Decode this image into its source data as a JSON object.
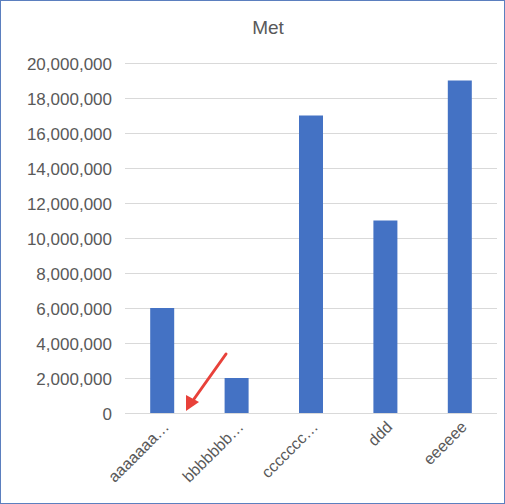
{
  "chart_data": {
    "type": "bar",
    "title": "Met",
    "categories": [
      "aaaaaaa…",
      "bbbbbbb…",
      "ccccccc…",
      "ddd",
      "eeeeee"
    ],
    "values": [
      6000000,
      2000000,
      17000000,
      11000000,
      19000000
    ],
    "color": "#4472c4",
    "ylim": [
      0,
      20000000
    ],
    "yticks": [
      0,
      {
        "value": 2000000,
        "label": "2,000,000"
      },
      {
        "value": 4000000,
        "label": "4,000,000"
      },
      {
        "value": 6000000,
        "label": "6,000,000"
      },
      {
        "value": 8000000,
        "label": "8,000,000"
      },
      {
        "value": 10000000,
        "label": "10,000,000"
      },
      {
        "value": 12000000,
        "label": "12,000,000"
      },
      {
        "value": 14000000,
        "label": "14,000,000"
      },
      {
        "value": 16000000,
        "label": "16,000,000"
      },
      {
        "value": 18000000,
        "label": "18,000,000"
      },
      {
        "value": 20000000,
        "label": "20,000,000"
      }
    ],
    "grid": true
  }
}
